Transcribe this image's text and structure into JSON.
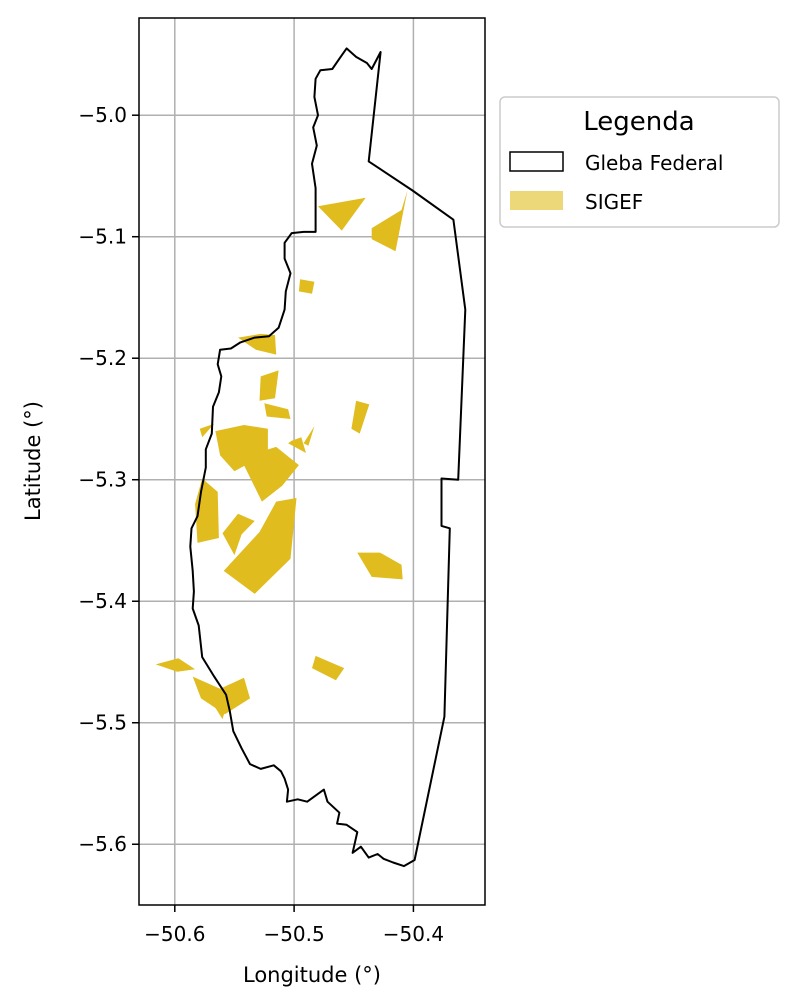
{
  "map": {
    "xlabel": "Longitude (°)",
    "ylabel": "Latitude (°)",
    "xlim": [
      -50.63,
      -50.34
    ],
    "ylim": [
      -5.65,
      -4.92
    ],
    "x_ticks": [
      -50.6,
      -50.5,
      -50.4
    ],
    "x_tick_labels": [
      "−50.6",
      "−50.5",
      "−50.4"
    ],
    "y_ticks": [
      -5.0,
      -5.1,
      -5.2,
      -5.3,
      -5.4,
      -5.5,
      -5.6
    ],
    "y_tick_labels": [
      "−5.0",
      "−5.1",
      "−5.2",
      "−5.3",
      "−5.4",
      "−5.5",
      "−5.6"
    ],
    "grid": true,
    "colors": {
      "outline": "#000000",
      "sigef_fill": "#e0bc1f",
      "grid": "#b0b0b0",
      "legend_border": "#cccccc"
    },
    "legend": {
      "title": "Legenda",
      "placement": "outside right, top",
      "items": [
        {
          "label": "Gleba Federal",
          "style": "outline"
        },
        {
          "label": "SIGEF",
          "style": "fill"
        }
      ]
    },
    "layers": {
      "gleba_federal": [
        [
          -50.4275,
          -4.948
        ],
        [
          -50.4375,
          -5.038
        ],
        [
          -50.4008,
          -5.062
        ],
        [
          -50.3665,
          -5.086
        ],
        [
          -50.3565,
          -5.16
        ],
        [
          -50.3625,
          -5.3
        ],
        [
          -50.3765,
          -5.299
        ],
        [
          -50.3765,
          -5.338
        ],
        [
          -50.3695,
          -5.34
        ],
        [
          -50.374,
          -5.495
        ],
        [
          -50.399,
          -5.613
        ],
        [
          -50.408,
          -5.618
        ],
        [
          -50.417,
          -5.615
        ],
        [
          -50.425,
          -5.612
        ],
        [
          -50.43,
          -5.608
        ],
        [
          -50.4375,
          -5.611
        ],
        [
          -50.444,
          -5.602
        ],
        [
          -50.451,
          -5.607
        ],
        [
          -50.447,
          -5.59
        ],
        [
          -50.456,
          -5.584
        ],
        [
          -50.464,
          -5.583
        ],
        [
          -50.462,
          -5.574
        ],
        [
          -50.472,
          -5.565
        ],
        [
          -50.475,
          -5.555
        ],
        [
          -50.489,
          -5.565
        ],
        [
          -50.497,
          -5.563
        ],
        [
          -50.506,
          -5.565
        ],
        [
          -50.505,
          -5.555
        ],
        [
          -50.508,
          -5.546
        ],
        [
          -50.511,
          -5.54
        ],
        [
          -50.517,
          -5.535
        ],
        [
          -50.528,
          -5.538
        ],
        [
          -50.537,
          -5.534
        ],
        [
          -50.544,
          -5.521
        ],
        [
          -50.551,
          -5.507
        ],
        [
          -50.554,
          -5.49
        ],
        [
          -50.557,
          -5.477
        ],
        [
          -50.567,
          -5.462
        ],
        [
          -50.577,
          -5.446
        ],
        [
          -50.58,
          -5.42
        ],
        [
          -50.585,
          -5.406
        ],
        [
          -50.584,
          -5.392
        ],
        [
          -50.585,
          -5.375
        ],
        [
          -50.587,
          -5.355
        ],
        [
          -50.586,
          -5.34
        ],
        [
          -50.581,
          -5.33
        ],
        [
          -50.578,
          -5.31
        ],
        [
          -50.574,
          -5.29
        ],
        [
          -50.574,
          -5.275
        ],
        [
          -50.569,
          -5.262
        ],
        [
          -50.568,
          -5.24
        ],
        [
          -50.563,
          -5.228
        ],
        [
          -50.561,
          -5.215
        ],
        [
          -50.564,
          -5.205
        ],
        [
          -50.562,
          -5.193
        ],
        [
          -50.553,
          -5.192
        ],
        [
          -50.545,
          -5.187
        ],
        [
          -50.533,
          -5.183
        ],
        [
          -50.521,
          -5.182
        ],
        [
          -50.513,
          -5.175
        ],
        [
          -50.508,
          -5.16
        ],
        [
          -50.507,
          -5.145
        ],
        [
          -50.503,
          -5.13
        ],
        [
          -50.508,
          -5.118
        ],
        [
          -50.508,
          -5.105
        ],
        [
          -50.502,
          -5.097
        ],
        [
          -50.492,
          -5.096
        ],
        [
          -50.482,
          -5.096
        ],
        [
          -50.482,
          -5.08
        ],
        [
          -50.482,
          -5.06
        ],
        [
          -50.485,
          -5.04
        ],
        [
          -50.481,
          -5.025
        ],
        [
          -50.484,
          -5.01
        ],
        [
          -50.48,
          -5.0
        ],
        [
          -50.483,
          -4.985
        ],
        [
          -50.482,
          -4.97
        ],
        [
          -50.478,
          -4.963
        ],
        [
          -50.468,
          -4.962
        ],
        [
          -50.461,
          -4.952
        ],
        [
          -50.456,
          -4.945
        ],
        [
          -50.448,
          -4.952
        ],
        [
          -50.439,
          -4.957
        ],
        [
          -50.435,
          -4.962
        ],
        [
          -50.4275,
          -4.948
        ]
      ],
      "sigef": [
        [
          [
            -50.48,
            -5.075
          ],
          [
            -50.44,
            -5.068
          ],
          [
            -50.46,
            -5.095
          ],
          [
            -50.47,
            -5.085
          ]
        ],
        [
          [
            -50.435,
            -5.093
          ],
          [
            -50.41,
            -5.078
          ],
          [
            -50.405,
            -5.062
          ],
          [
            -50.415,
            -5.112
          ],
          [
            -50.435,
            -5.102
          ]
        ],
        [
          [
            -50.495,
            -5.135
          ],
          [
            -50.483,
            -5.137
          ],
          [
            -50.485,
            -5.147
          ],
          [
            -50.496,
            -5.145
          ]
        ],
        [
          [
            -50.547,
            -5.183
          ],
          [
            -50.528,
            -5.18
          ],
          [
            -50.516,
            -5.181
          ],
          [
            -50.515,
            -5.197
          ],
          [
            -50.532,
            -5.193
          ]
        ],
        [
          [
            -50.528,
            -5.215
          ],
          [
            -50.513,
            -5.21
          ],
          [
            -50.516,
            -5.233
          ],
          [
            -50.529,
            -5.235
          ]
        ],
        [
          [
            -50.525,
            -5.237
          ],
          [
            -50.505,
            -5.242
          ],
          [
            -50.503,
            -5.25
          ],
          [
            -50.523,
            -5.248
          ]
        ],
        [
          [
            -50.448,
            -5.235
          ],
          [
            -50.437,
            -5.238
          ],
          [
            -50.445,
            -5.262
          ],
          [
            -50.452,
            -5.258
          ]
        ],
        [
          [
            -50.579,
            -5.258
          ],
          [
            -50.567,
            -5.254
          ],
          [
            -50.577,
            -5.265
          ]
        ],
        [
          [
            -50.566,
            -5.26
          ],
          [
            -50.542,
            -5.255
          ],
          [
            -50.522,
            -5.258
          ],
          [
            -50.522,
            -5.278
          ],
          [
            -50.55,
            -5.293
          ],
          [
            -50.562,
            -5.28
          ]
        ],
        [
          [
            -50.502,
            -5.268
          ],
          [
            -50.494,
            -5.265
          ],
          [
            -50.49,
            -5.278
          ],
          [
            -50.505,
            -5.27
          ]
        ],
        [
          [
            -50.492,
            -5.27
          ],
          [
            -50.483,
            -5.256
          ],
          [
            -50.488,
            -5.272
          ]
        ],
        [
          [
            -50.545,
            -5.282
          ],
          [
            -50.515,
            -5.273
          ],
          [
            -50.496,
            -5.288
          ],
          [
            -50.51,
            -5.305
          ],
          [
            -50.527,
            -5.318
          ]
        ],
        [
          [
            -50.577,
            -5.299
          ],
          [
            -50.564,
            -5.31
          ],
          [
            -50.563,
            -5.348
          ],
          [
            -50.581,
            -5.352
          ],
          [
            -50.583,
            -5.32
          ]
        ],
        [
          [
            -50.547,
            -5.328
          ],
          [
            -50.533,
            -5.334
          ],
          [
            -50.544,
            -5.345
          ],
          [
            -50.55,
            -5.362
          ],
          [
            -50.56,
            -5.344
          ]
        ],
        [
          [
            -50.515,
            -5.318
          ],
          [
            -50.498,
            -5.315
          ],
          [
            -50.503,
            -5.365
          ],
          [
            -50.533,
            -5.394
          ],
          [
            -50.559,
            -5.375
          ],
          [
            -50.529,
            -5.343
          ]
        ],
        [
          [
            -50.447,
            -5.36
          ],
          [
            -50.428,
            -5.36
          ],
          [
            -50.41,
            -5.37
          ],
          [
            -50.409,
            -5.382
          ],
          [
            -50.435,
            -5.38
          ]
        ],
        [
          [
            -50.482,
            -5.445
          ],
          [
            -50.458,
            -5.455
          ],
          [
            -50.465,
            -5.465
          ],
          [
            -50.485,
            -5.455
          ]
        ],
        [
          [
            -50.616,
            -5.452
          ],
          [
            -50.597,
            -5.447
          ],
          [
            -50.583,
            -5.456
          ],
          [
            -50.598,
            -5.458
          ]
        ],
        [
          [
            -50.585,
            -5.462
          ],
          [
            -50.562,
            -5.472
          ],
          [
            -50.542,
            -5.463
          ],
          [
            -50.537,
            -5.48
          ],
          [
            -50.558,
            -5.493
          ],
          [
            -50.578,
            -5.48
          ]
        ],
        [
          [
            -50.571,
            -5.48
          ],
          [
            -50.556,
            -5.484
          ],
          [
            -50.56,
            -5.497
          ]
        ]
      ]
    }
  }
}
